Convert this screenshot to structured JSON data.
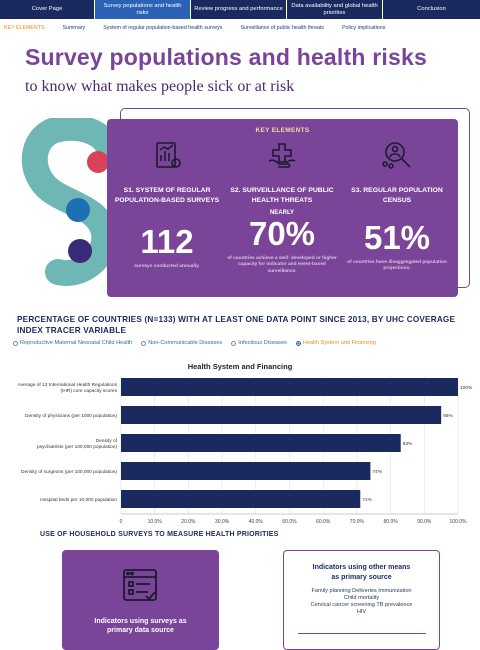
{
  "nav": {
    "tabs": [
      "Cover Page",
      "Survey populations and health risks",
      "Review progress and performance",
      "Data availability and global health priorities",
      "Conclusion"
    ],
    "active_index": 1
  },
  "subnav": [
    "KEY ELEMENTS",
    "Summary",
    "System of regular population-based health surveys",
    "Surveillance of public health threats",
    "Policy implications"
  ],
  "page": {
    "title": "Survey populations and health risks",
    "subtitle": "to know what makes people sick or at risk"
  },
  "key_elements": {
    "heading": "KEY ELEMENTS",
    "items": [
      {
        "title_line1": "S1. SYSTEM OF REGULAR",
        "title_line2": "POPULATION-BASED SURVEYS",
        "prefix": "",
        "value": "112",
        "desc": "surveys conducted annually.",
        "icon": "bar-chart-doc-icon"
      },
      {
        "title_line1": "S2. SURVEILLANCE OF PUBLIC",
        "title_line2": "HEALTH THREATS",
        "prefix": "NEARLY",
        "value": "70%",
        "desc": "of countries achieve a well- developed or higher capacity for indicator and event-based surveillance.",
        "icon": "hand-health-cross-icon"
      },
      {
        "title_line1": "S3. REGULAR POPULATION",
        "title_line2": "CENSUS",
        "prefix": "",
        "value": "51%",
        "desc": "of countries have disaggregated population projections.",
        "icon": "people-search-icon"
      }
    ]
  },
  "coverage": {
    "title": "PERCENTAGE OF COUNTRIES (N=133) WITH AT LEAST ONE DATA POINT SINCE 2013, BY UHC COVERAGE INDEX TRACER VARIABLE",
    "options": [
      "Reproductive Maternal Neonatal Child Health",
      "Non-Communicable Diseases",
      "Infectious Diseases",
      "Health System and Financing"
    ],
    "selected_index": 3
  },
  "chart_data": {
    "type": "bar",
    "orientation": "horizontal",
    "title": "Health System and Financing",
    "categories": [
      "Average of 13 International Health Regulations (IHR) core capacity scores",
      "Density of physicians (per 1000 population)",
      "Density of psychiatrists (per 100,000 population)",
      "Density of surgeons (per 100,000 population)",
      "Hospital beds per 10,000 population"
    ],
    "values": [
      100,
      95,
      83,
      74,
      71
    ],
    "data_labels": [
      "100%",
      "95%",
      "83%",
      "74%",
      "71%"
    ],
    "xlim": [
      0,
      100
    ],
    "x_ticks": [
      "0",
      "10.0%",
      "20.0%",
      "30.0%",
      "40.0%",
      "50.0%",
      "60.0%",
      "70.0%",
      "80.0%",
      "90.0%",
      "100.0%"
    ],
    "grid": true,
    "color": "#1b2a5e"
  },
  "household": {
    "title": "USE OF HOUSEHOLD SURVEYS TO MEASURE HEALTH PRIORITIES",
    "left_card": {
      "label_line1": "Indicators using surveys as",
      "label_line2": "primary data source",
      "icon": "survey-form-icon"
    },
    "right_card": {
      "title_line1": "Indicators using other means",
      "title_line2": "as primary source",
      "lines": [
        "Family planning Deliveries Immunization",
        "Child mortality",
        "Cervical cancer screening TB prevalence",
        "HIV"
      ]
    }
  },
  "colors": {
    "purple": "#7a4599",
    "navy": "#1b2a5e",
    "orange": "#f08a1e",
    "teal": "#6fb7b4",
    "blue": "#1e6fb4",
    "red": "#d8435a"
  }
}
